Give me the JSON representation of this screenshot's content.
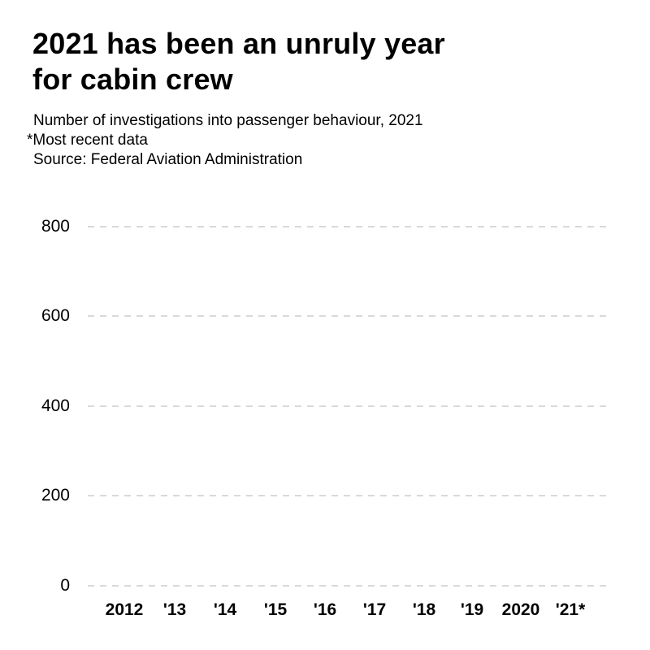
{
  "chart": {
    "title_line1": "2021 has been an unruly year",
    "title_line2": "for cabin crew",
    "subtitle": "Number of investigations into passenger behaviour, 2021",
    "footnote": "*Most recent data",
    "source": "Source: Federal Aviation Administration",
    "y_ticks": [
      "800",
      "600",
      "400",
      "200",
      "0"
    ],
    "x_ticks": [
      "2012",
      "'13",
      "'14",
      "'15",
      "'16",
      "'17",
      "'18",
      "'19",
      "2020",
      "'21*"
    ]
  },
  "chart_data": {
    "type": "bar",
    "title": "2021 has been an unruly year for cabin crew",
    "subtitle": "Number of investigations into passenger behaviour, 2021",
    "footnote": "*Most recent data",
    "source": "Federal Aviation Administration",
    "categories": [
      "2012",
      "'13",
      "'14",
      "'15",
      "'16",
      "'17",
      "'18",
      "'19",
      "2020",
      "'21*"
    ],
    "series": [],
    "note": "plot area is empty - no bars/data marks are rendered in the screenshot",
    "xlabel": "",
    "ylabel": "",
    "ylim": [
      0,
      800
    ],
    "y_tick_values": [
      0,
      200,
      400,
      600,
      800
    ],
    "grid": "horizontal dashed gridlines only",
    "legend": "none"
  },
  "colors": {
    "background": "#ffffff",
    "text": "#000000",
    "gridline": "#d9d9d9"
  }
}
